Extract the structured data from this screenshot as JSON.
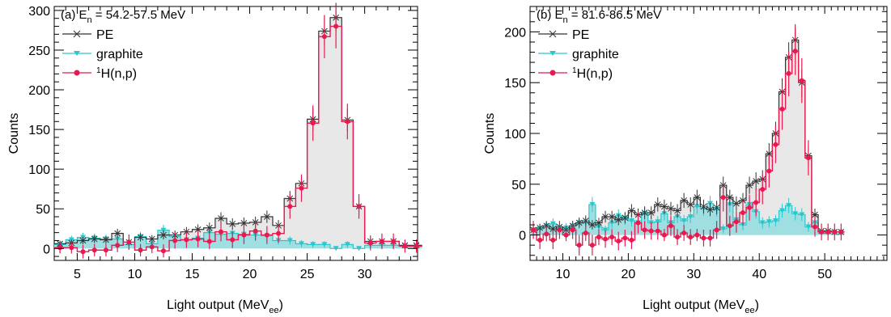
{
  "colors": {
    "pe": "#333333",
    "pe_fill": "#e8e8e8",
    "graphite": "#2cc6cc",
    "graphite_fill": "#9fdfe2",
    "hnp": "#e8194f",
    "axis": "#000000"
  },
  "chart_data": [
    {
      "type": "histogram",
      "panel": "a",
      "title_prefix": "(a) E",
      "title_sub": "n",
      "title_suffix": " = 54.2-57.5 MeV",
      "xlabel_main": "Light output (MeV",
      "xlabel_sub": "ee",
      "xlabel_end": ")",
      "ylabel": "Counts",
      "xlim": [
        3,
        34.6
      ],
      "ylim": [
        -15,
        305
      ],
      "x_ticks": [
        5,
        10,
        15,
        20,
        25,
        30
      ],
      "y_ticks": [
        0,
        50,
        100,
        150,
        200,
        250,
        300
      ],
      "bin_width": 1,
      "bin_start": 3,
      "legend": {
        "placement": "top-left",
        "entries": [
          {
            "key": "pe",
            "label": "PE"
          },
          {
            "key": "graphite",
            "label": "graphite"
          },
          {
            "key": "hnp",
            "sup": "1",
            "label": "H(n,p)"
          }
        ]
      },
      "series": {
        "pe": [
          6,
          7,
          10,
          12,
          11,
          19,
          8,
          14,
          12,
          17,
          17,
          21,
          24,
          26,
          38,
          31,
          32,
          33,
          40,
          29,
          63,
          82,
          163,
          274,
          291,
          162,
          53,
          9,
          9,
          9,
          4,
          4
        ],
        "graphite": [
          5,
          11,
          14,
          13,
          12,
          12,
          5,
          15,
          6,
          23,
          15,
          11,
          13,
          20,
          18,
          19,
          18,
          17,
          16,
          10,
          10,
          6,
          5,
          5,
          0,
          5,
          0,
          4,
          4,
          4,
          3,
          3
        ],
        "hnp": [
          1,
          1,
          -4,
          -2,
          -2,
          4,
          8,
          -2,
          2,
          -3,
          10,
          11,
          12,
          9,
          21,
          11,
          17,
          22,
          17,
          19,
          53,
          76,
          158,
          267,
          280,
          160,
          53,
          7,
          9,
          9,
          3,
          3
        ]
      }
    },
    {
      "type": "histogram",
      "panel": "b",
      "title_prefix": "(b) E",
      "title_sub": "n",
      "title_suffix": " = 81.6-86.5 MeV",
      "xlabel_main": "Light output (MeV",
      "xlabel_sub": "ee",
      "xlabel_end": ")",
      "ylabel": "Counts",
      "xlim": [
        5,
        59.5
      ],
      "ylim": [
        -25,
        225
      ],
      "x_ticks": [
        10,
        20,
        30,
        40,
        50
      ],
      "y_ticks": [
        0,
        50,
        100,
        150,
        200
      ],
      "bin_width": 1,
      "bin_start": 5,
      "legend": {
        "placement": "top-left",
        "entries": [
          {
            "key": "pe",
            "label": "PE"
          },
          {
            "key": "graphite",
            "label": "graphite"
          },
          {
            "key": "hnp",
            "sup": "1",
            "label": "H(n,p)"
          }
        ]
      },
      "series": {
        "pe": [
          5,
          7,
          9,
          6,
          8,
          5,
          9,
          12,
          14,
          10,
          12,
          18,
          18,
          15,
          17,
          24,
          20,
          22,
          22,
          30,
          28,
          26,
          24,
          34,
          30,
          37,
          28,
          25,
          27,
          49,
          37,
          31,
          34,
          49,
          53,
          55,
          80,
          100,
          141,
          175,
          192,
          150,
          78,
          20,
          4,
          4,
          3,
          3
        ],
        "graphite": [
          5,
          6,
          9,
          11,
          7,
          7,
          9,
          12,
          12,
          30,
          8,
          5,
          12,
          19,
          16,
          14,
          12,
          21,
          12,
          13,
          21,
          12,
          18,
          14,
          18,
          28,
          26,
          31,
          25,
          6,
          30,
          15,
          10,
          30,
          23,
          12,
          13,
          14,
          24,
          29,
          21,
          20,
          8,
          12,
          3,
          3,
          3,
          3
        ],
        "hnp": [
          5,
          -5,
          1,
          -5,
          5,
          0,
          5,
          -10,
          2,
          -10,
          -2,
          -4,
          -2,
          -6,
          -3,
          -5,
          12,
          5,
          4,
          4,
          0,
          9,
          -2,
          2,
          -2,
          0,
          -3,
          -3,
          5,
          37,
          9,
          13,
          22,
          27,
          32,
          45,
          63,
          89,
          124,
          159,
          181,
          152,
          76,
          8,
          3,
          3,
          3,
          3
        ]
      }
    }
  ]
}
